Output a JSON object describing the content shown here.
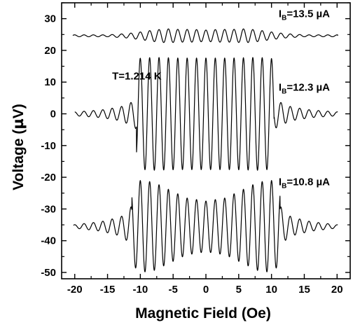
{
  "chart_data": {
    "type": "line",
    "xlabel": "Magnetic Field (Oe)",
    "ylabel_prefix": "Voltage (",
    "ylabel_mu": "µ",
    "ylabel_suffix": "V)",
    "xlim": [
      -22,
      22
    ],
    "ylim": [
      -52,
      35
    ],
    "x_ticks": [
      -20,
      -15,
      -10,
      -5,
      0,
      5,
      10,
      15,
      20
    ],
    "y_ticks": [
      -50,
      -40,
      -30,
      -20,
      -10,
      0,
      10,
      20,
      30
    ],
    "grid": false,
    "legend": "none",
    "line_color": "#000000",
    "oscillation_period_oe": 1.43,
    "annotations": [
      {
        "id": "temp",
        "text": "T=1.214 K",
        "x": -14.3,
        "y": 10.8
      },
      {
        "id": "ib1",
        "prefix": "I",
        "sub": "B",
        "rest": "=13.5 µA",
        "x": 11.1,
        "y": 30.5
      },
      {
        "id": "ib2",
        "prefix": "I",
        "sub": "B",
        "rest": "=12.3 µA",
        "x": 11.1,
        "y": 7.3
      },
      {
        "id": "ib3",
        "prefix": "I",
        "sub": "B",
        "rest": "=10.8 µA",
        "x": 11.1,
        "y": -22.5
      }
    ],
    "series": [
      {
        "label": "I_B=13.5 µA",
        "x_range": [
          -20.3,
          20.1
        ],
        "baseline": 24.6,
        "segments": [
          {
            "x": [
              -20.3,
              -15,
              -12,
              -10,
              -8,
              -6,
              -4,
              -2,
              0,
              2,
              4,
              6,
              8,
              10,
              12,
              15,
              20.1
            ],
            "amp": [
              0.3,
              0.3,
              0.7,
              1.2,
              1.8,
              2.2,
              2.0,
              2.0,
              1.8,
              2.0,
              2.0,
              2.2,
              1.8,
              1.2,
              0.7,
              0.3,
              0.3
            ]
          }
        ]
      },
      {
        "label": "I_B=12.3 µA",
        "x_range": [
          -20.0,
          20.1
        ],
        "baseline": 0.0,
        "segments": [
          {
            "x": [
              -20.0,
              -16,
              -13,
              -11.4,
              -10.6
            ],
            "amp": [
              0.6,
              1.2,
              2.2,
              3.6,
              4.8
            ]
          },
          {
            "x": [
              -10.6,
              -10.2,
              -8,
              -4,
              0,
              4,
              8,
              10.0,
              10.4
            ],
            "amp": [
              15.0,
              17.5,
              17.8,
              17.6,
              17.6,
              17.6,
              17.8,
              17.5,
              15.0
            ]
          },
          {
            "x": [
              10.4,
              11.4,
              13,
              16,
              20.1
            ],
            "amp": [
              4.8,
              3.6,
              2.2,
              1.2,
              0.6
            ]
          }
        ]
      },
      {
        "label": "I_B=10.8 µA",
        "x_range": [
          -20.2,
          20.1
        ],
        "baseline": -35.5,
        "segments": [
          {
            "x": [
              -20.2,
              -16,
              -13,
              -12,
              -11.3
            ],
            "amp": [
              0.5,
              1.5,
              3.0,
              4.6,
              6.5
            ]
          },
          {
            "x": [
              -11.3,
              -10,
              -8,
              -5,
              -3,
              0,
              3,
              5,
              8,
              10,
              11.3
            ],
            "amp": [
              12.0,
              14.5,
              14.0,
              11.0,
              9.0,
              8.0,
              9.0,
              11.0,
              14.0,
              14.5,
              12.0
            ]
          },
          {
            "x": [
              11.3,
              12,
              13,
              16,
              20.1
            ],
            "amp": [
              6.5,
              4.6,
              3.0,
              1.5,
              0.5
            ]
          }
        ]
      }
    ]
  }
}
